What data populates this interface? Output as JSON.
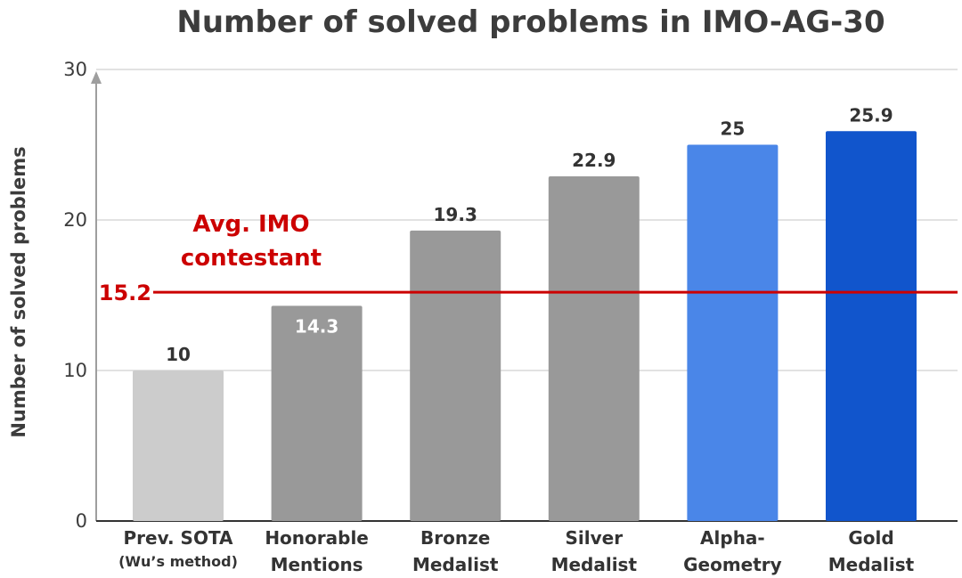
{
  "chart_data": {
    "type": "bar",
    "title": "Number of solved problems in IMO-AG-30",
    "xlabel": "",
    "ylabel": "Number of solved problems",
    "ylim": [
      0,
      30
    ],
    "yticks": [
      "0",
      "10",
      "20",
      "30"
    ],
    "grid": true,
    "categories": [
      {
        "lines": [
          "Prev. SOTA"
        ],
        "sub": "(Wu’s method)"
      },
      {
        "lines": [
          "Honorable",
          "Mentions"
        ],
        "sub": ""
      },
      {
        "lines": [
          "Bronze",
          "Medalist"
        ],
        "sub": ""
      },
      {
        "lines": [
          "Silver",
          "Medalist"
        ],
        "sub": ""
      },
      {
        "lines": [
          "Alpha-",
          "Geometry"
        ],
        "sub": ""
      },
      {
        "lines": [
          "Gold",
          "Medalist"
        ],
        "sub": ""
      }
    ],
    "values": [
      10,
      14.3,
      19.3,
      22.9,
      25,
      25.9
    ],
    "value_labels": [
      "10",
      "14.3",
      "19.3",
      "22.9",
      "25",
      "25.9"
    ],
    "label_inside": [
      false,
      true,
      false,
      false,
      false,
      false
    ],
    "colors": [
      "#cccccc",
      "#999999",
      "#999999",
      "#999999",
      "#4a86e8",
      "#1155cc"
    ],
    "reference_line": {
      "value": 15.2,
      "value_label": "15.2",
      "label_lines": [
        "Avg. IMO",
        "contestant"
      ],
      "color": "#cc0000"
    }
  }
}
